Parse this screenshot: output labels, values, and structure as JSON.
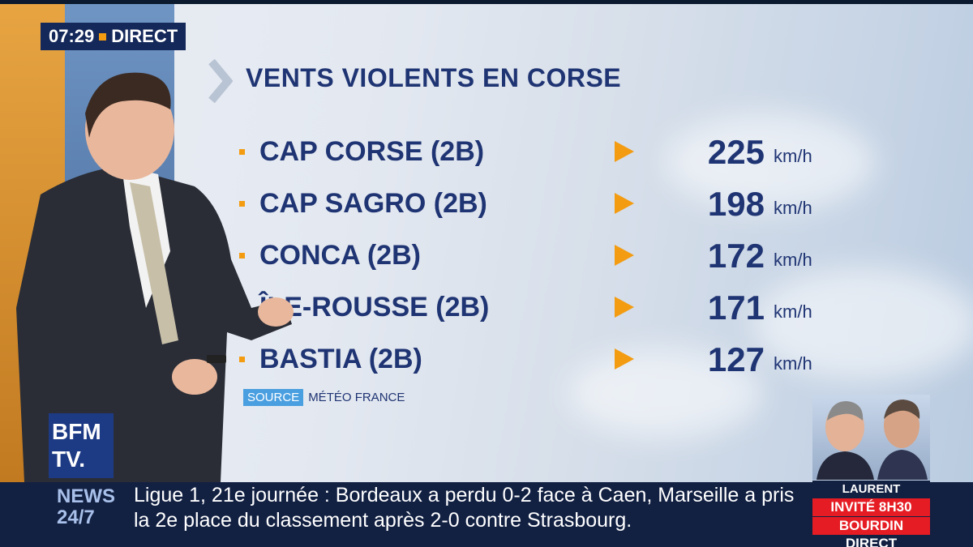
{
  "clock": {
    "time": "07:29",
    "live": "DIRECT"
  },
  "title": "VENTS VIOLENTS EN CORSE",
  "rows": [
    {
      "place": "CAP CORSE (2B)",
      "value": "225",
      "unit": "km/h"
    },
    {
      "place": "CAP SAGRO (2B)",
      "value": "198",
      "unit": "km/h"
    },
    {
      "place": "CONCA (2B)",
      "value": "172",
      "unit": "km/h"
    },
    {
      "place": "ÎLE-ROUSSE (2B)",
      "value": "171",
      "unit": "km/h"
    },
    {
      "place": "BASTIA (2B)",
      "value": "127",
      "unit": "km/h"
    }
  ],
  "source": {
    "tag": "SOURCE",
    "text": "MÉTÉO FRANCE"
  },
  "logo": {
    "line1": "BFM",
    "line2": "TV."
  },
  "news": {
    "line1": "NEWS",
    "line2": "24/7"
  },
  "ticker": "Ligue 1, 21e journée : Bordeaux a perdu 0-2 face à Caen, Marseille a pris la 2e place du classement après 2-0 contre Strasbourg.",
  "promo": {
    "name": "LAURENT WAUQUIEZ",
    "line1": "INVITÉ 8H30",
    "line2": "BOURDIN DIRECT"
  },
  "colors": {
    "accent": "#f39c12",
    "navy": "#1f3473",
    "red": "#e51c23"
  }
}
